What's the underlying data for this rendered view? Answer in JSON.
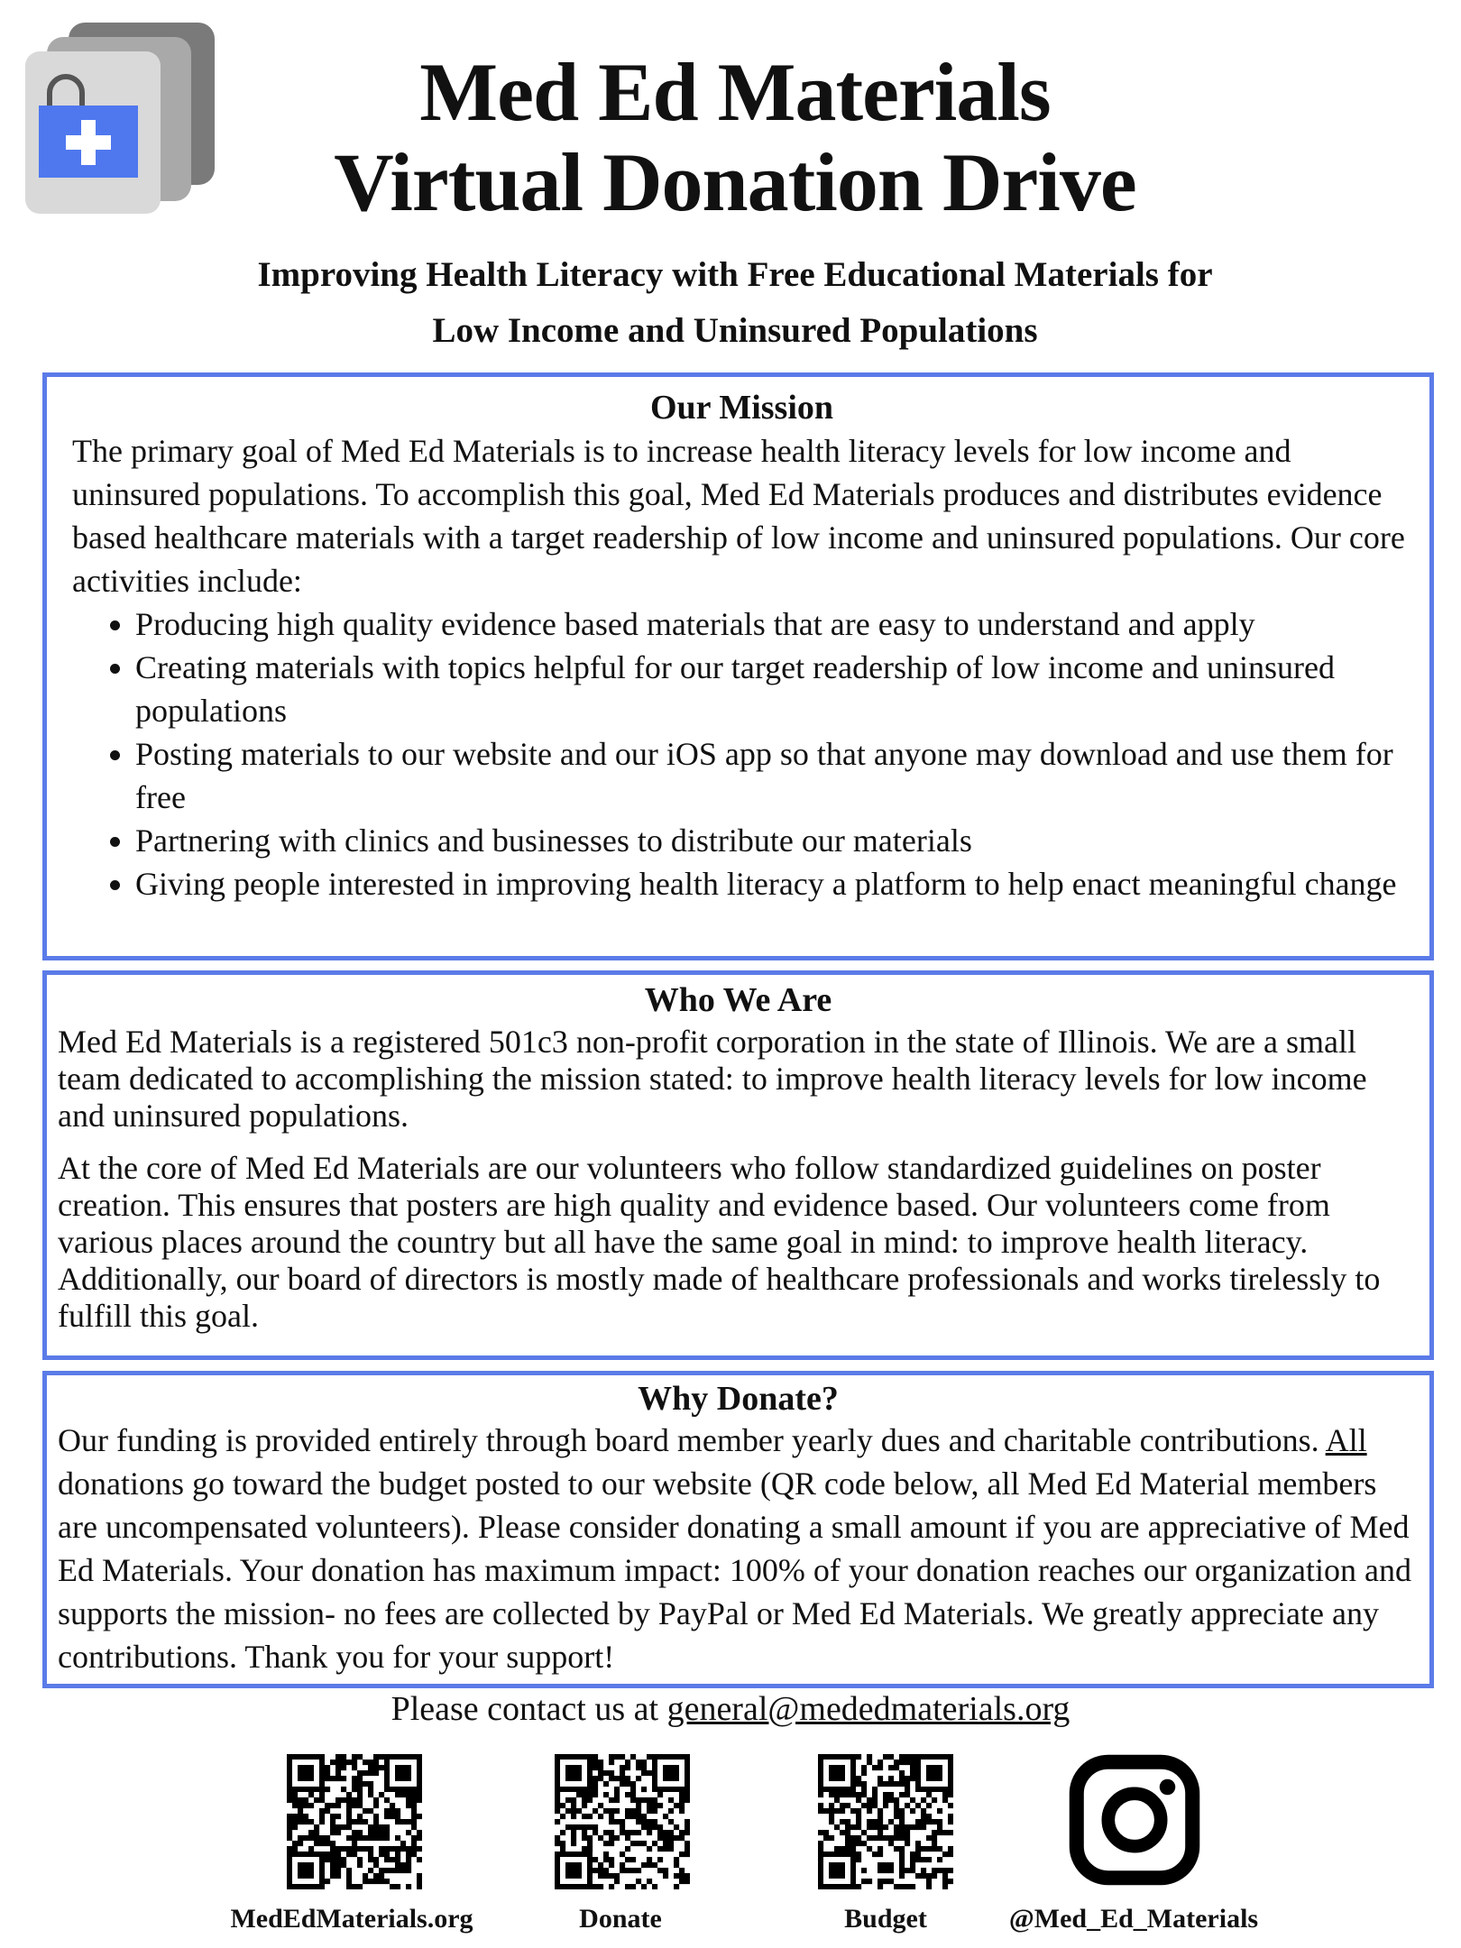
{
  "header": {
    "title_line1": "Med Ed Materials",
    "title_line2": "Virtual Donation Drive",
    "subtitle_line1": "Improving Health Literacy with Free Educational Materials for",
    "subtitle_line2": "Low Income and Uninsured Populations",
    "logo_icon": "medical-bag-icon",
    "accent_color": "#5b7be8"
  },
  "mission": {
    "heading": "Our Mission",
    "intro": "The primary goal of Med Ed Materials is to increase health literacy levels for low income and uninsured populations. To accomplish this goal, Med Ed Materials produces and distributes evidence based healthcare materials with a target readership of low income and uninsured populations. Our core activities include:",
    "bullets": [
      "Producing high quality evidence based materials that are easy to understand and apply",
      "Creating materials with topics helpful for our target readership of low income and uninsured populations",
      "Posting materials to our website and our iOS app so that anyone may download and use them for free",
      "Partnering with clinics and businesses to distribute our materials",
      "Giving people interested in improving health literacy a platform to help enact meaningful change"
    ]
  },
  "who": {
    "heading": "Who We Are",
    "p1": "Med Ed Materials is a registered 501c3 non-profit corporation in the state of Illinois. We are a small team dedicated to accomplishing the mission stated: to improve health literacy levels for low income and uninsured populations.",
    "p2": "At the core of Med Ed Materials are our volunteers who follow standardized guidelines on poster creation. This ensures that posters are high quality and evidence based. Our volunteers come from various places around the country but all have the same goal in mind: to improve health literacy. Additionally, our board of directors is mostly made of healthcare professionals and works tirelessly to fulfill this goal."
  },
  "why": {
    "heading": "Why Donate?",
    "text_before": "Our funding is provided entirely through board member yearly dues and charitable contributions. ",
    "underlined": "All",
    "text_after": " donations go toward the budget posted to our website (QR code below, all Med Ed Material members are uncompensated volunteers). Please consider donating a small amount if you are appreciative of Med Ed Materials. Your donation has maximum impact: 100% of your donation reaches our organization and supports the mission- no fees are collected by PayPal or Med Ed Materials. We greatly appreciate any contributions. Thank you for your support!"
  },
  "contact": {
    "prefix": "Please contact us at ",
    "email": "general@mededmaterials.org"
  },
  "links": [
    {
      "label": "MedEdMaterials.org",
      "icon": "qr-code-icon"
    },
    {
      "label": "Donate",
      "icon": "qr-code-icon"
    },
    {
      "label": "Budget",
      "icon": "qr-code-icon"
    },
    {
      "label": "@Med_Ed_Materials",
      "icon": "instagram-icon"
    }
  ]
}
